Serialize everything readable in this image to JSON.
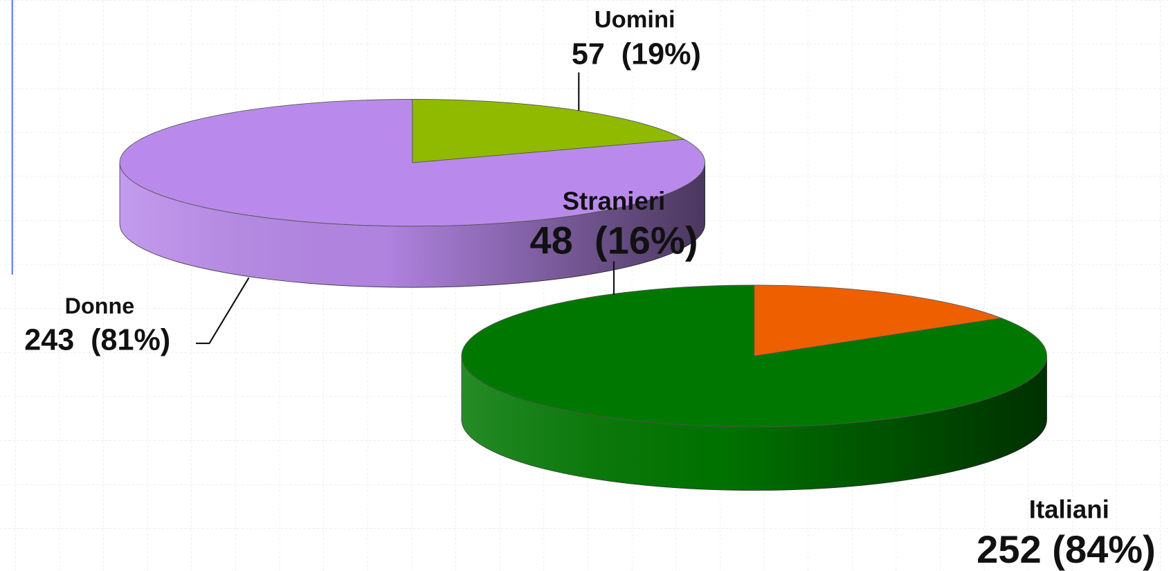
{
  "chart_data": [
    {
      "type": "pie3d",
      "categories": [
        "Uomini",
        "Donne"
      ],
      "values": [
        57,
        243
      ],
      "value_labels": [
        "57  (19%)",
        "243  (81%)"
      ],
      "colors": [
        "#8fba00",
        "#b98aeb"
      ]
    },
    {
      "type": "pie3d",
      "categories": [
        "Stranieri",
        "Italiani"
      ],
      "values": [
        48,
        252
      ],
      "value_labels": [
        "48  (16%)",
        "252 (84%)"
      ],
      "colors": [
        "#ee5f00",
        "#007800"
      ]
    }
  ]
}
